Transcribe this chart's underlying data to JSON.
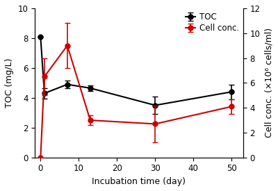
{
  "toc_x": [
    0,
    1,
    7,
    13,
    30,
    50
  ],
  "toc_y": [
    8.1,
    4.3,
    4.9,
    4.65,
    3.5,
    4.4
  ],
  "toc_yerr": [
    0.0,
    0.35,
    0.25,
    0.2,
    0.6,
    0.5
  ],
  "cell_x": [
    0,
    1,
    7,
    13,
    30,
    50
  ],
  "cell_y": [
    0.0,
    6.5,
    9.0,
    3.0,
    2.7,
    4.1
  ],
  "cell_yerr": [
    0.0,
    1.5,
    1.8,
    0.4,
    1.5,
    0.6
  ],
  "toc_color": "#000000",
  "cell_color": "#cc0000",
  "xlabel": "Incubation time (day)",
  "ylabel_left": "TOC (mg/L)",
  "ylabel_right": "Cell conc. (×10⁶ cells/ml)",
  "xlim": [
    -1.5,
    53
  ],
  "ylim_left": [
    0,
    10
  ],
  "ylim_right": [
    0,
    12
  ],
  "xticks": [
    0,
    10,
    20,
    30,
    40,
    50
  ],
  "yticks_left": [
    0,
    2,
    4,
    6,
    8,
    10
  ],
  "yticks_right": [
    0,
    2,
    4,
    6,
    8,
    10,
    12
  ],
  "legend_toc": "TOC",
  "legend_cell": "Cell conc.",
  "marker": "o",
  "markersize": 5,
  "linewidth": 1.5,
  "capsize": 3,
  "elinewidth": 1.2,
  "background_color": "#ffffff"
}
